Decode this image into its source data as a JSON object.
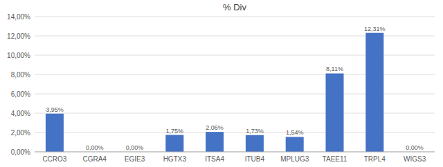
{
  "chart_data": {
    "type": "bar",
    "title": "% Div",
    "categories": [
      "CCRO3",
      "CGRA4",
      "EGIE3",
      "HGTX3",
      "ITSA4",
      "ITUB4",
      "MPLUG3",
      "TAEE11",
      "TRPL4",
      "WIGS3"
    ],
    "values": [
      3.95,
      0.0,
      0.0,
      1.75,
      2.06,
      1.73,
      1.54,
      8.11,
      12.31,
      0.0
    ],
    "value_labels": [
      "3,95%",
      "0,00%",
      "0,00%",
      "1,75%",
      "2,06%",
      "1,73%",
      "1,54%",
      "8,11%",
      "12,31%",
      "0,00%"
    ],
    "data_labels": true,
    "color": "#4472C4",
    "ylim": [
      0,
      14.0
    ],
    "yticks": [
      {
        "value": 0,
        "label": "0,00%"
      },
      {
        "value": 2,
        "label": "2,00%"
      },
      {
        "value": 4,
        "label": "4,00%"
      },
      {
        "value": 6,
        "label": "6,00%"
      },
      {
        "value": 8,
        "label": "8,00%"
      },
      {
        "value": 10,
        "label": "10,00%"
      },
      {
        "value": 12,
        "label": "12,00%"
      },
      {
        "value": 14,
        "label": "14,00%"
      }
    ],
    "grid": true
  }
}
